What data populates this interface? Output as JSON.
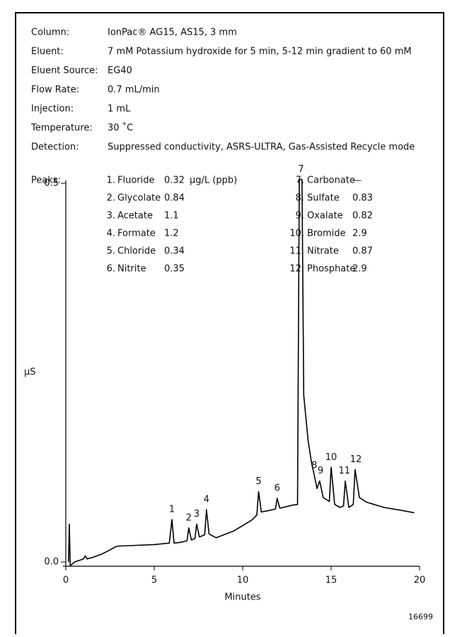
{
  "conditions": [
    {
      "label": "Column:",
      "value": "IonPac® AG15, AS15, 3 mm"
    },
    {
      "label": "Eluent:",
      "value": "7 mM Potassium hydroxide for 5 min, 5-12 min gradient to 60 mM"
    },
    {
      "label": "Eluent Source:",
      "value": "EG40"
    },
    {
      "label": "Flow Rate:",
      "value": "0.7 mL/min"
    },
    {
      "label": "Injection:",
      "value": "1 mL"
    },
    {
      "label": "Temperature:",
      "value": "30 ˚C"
    },
    {
      "label": "Detection:",
      "value": "Suppressed conductivity, ASRS-ULTRA, Gas-Assisted Recycle mode"
    }
  ],
  "peaks": {
    "label": "Peaks:",
    "units": "µg/L (ppb)",
    "items": [
      {
        "num": "1.",
        "name": "Fluoride",
        "conc": "0.32"
      },
      {
        "num": "2.",
        "name": "Glycolate",
        "conc": "0.84"
      },
      {
        "num": "3.",
        "name": "Acetate",
        "conc": "1.1"
      },
      {
        "num": "4.",
        "name": "Formate",
        "conc": "1.2"
      },
      {
        "num": "5.",
        "name": "Chloride",
        "conc": "0.34"
      },
      {
        "num": "6.",
        "name": "Nitrite",
        "conc": "0.35"
      },
      {
        "num": "7.",
        "name": "Carbonate",
        "conc": "—"
      },
      {
        "num": "8.",
        "name": "Sulfate",
        "conc": "0.83"
      },
      {
        "num": "9.",
        "name": "Oxalate",
        "conc": "0.82"
      },
      {
        "num": "10.",
        "name": "Bromide",
        "conc": "2.9"
      },
      {
        "num": "11.",
        "name": "Nitrate",
        "conc": "0.87"
      },
      {
        "num": "12.",
        "name": "Phosphate",
        "conc": "2.9"
      }
    ]
  },
  "chart_data": {
    "type": "line",
    "x_label": "Minutes",
    "y_label": "µS",
    "color": "#000000",
    "xlim": [
      0,
      20
    ],
    "xticks": [
      0,
      5,
      10,
      15,
      20
    ],
    "ylim": [
      0,
      0.5
    ],
    "yticks": [
      {
        "value": 0,
        "label": "0.0"
      },
      0.5
    ],
    "x": [
      0.15,
      0.2,
      0.25,
      0.35,
      0.5,
      1.0,
      1.1,
      1.2,
      1.5,
      2.0,
      2.5,
      2.8,
      3.0,
      4.0,
      5.0,
      5.85,
      6.0,
      6.12,
      6.5,
      6.85,
      6.95,
      7.1,
      7.3,
      7.4,
      7.55,
      7.85,
      7.95,
      8.1,
      8.5,
      9.5,
      10.5,
      10.8,
      10.9,
      11.05,
      11.5,
      11.85,
      11.95,
      12.1,
      12.8,
      13.1,
      13.2,
      13.35,
      13.45,
      13.7,
      13.9,
      14.05,
      14.2,
      14.35,
      14.55,
      14.9,
      15.0,
      15.2,
      15.5,
      15.7,
      15.8,
      16.0,
      16.25,
      16.35,
      16.6,
      17.0,
      18.0,
      19.0,
      19.7
    ],
    "values": [
      0,
      0.05,
      -0.005,
      -0.003,
      0.0,
      0.004,
      0.008,
      0.004,
      0.006,
      0.01,
      0.016,
      0.02,
      0.021,
      0.022,
      0.023,
      0.025,
      0.056,
      0.025,
      0.026,
      0.028,
      0.045,
      0.029,
      0.031,
      0.05,
      0.033,
      0.036,
      0.069,
      0.037,
      0.032,
      0.041,
      0.055,
      0.062,
      0.093,
      0.066,
      0.068,
      0.07,
      0.084,
      0.071,
      0.075,
      0.076,
      0.505,
      0.505,
      0.22,
      0.16,
      0.13,
      0.114,
      0.097,
      0.107,
      0.085,
      0.08,
      0.125,
      0.076,
      0.072,
      0.074,
      0.107,
      0.072,
      0.076,
      0.122,
      0.085,
      0.079,
      0.072,
      0.068,
      0.065
    ],
    "annotations": [
      {
        "text": "1",
        "x": 6.0,
        "y": 0.056
      },
      {
        "text": "2",
        "x": 6.95,
        "y": 0.045
      },
      {
        "text": "3",
        "x": 7.4,
        "y": 0.05
      },
      {
        "text": "4",
        "x": 7.95,
        "y": 0.069
      },
      {
        "text": "5",
        "x": 10.9,
        "y": 0.093
      },
      {
        "text": "6",
        "x": 11.95,
        "y": 0.084
      },
      {
        "text": "7",
        "x": 13.3,
        "y": 0.505
      },
      {
        "text": "8",
        "x": 14.05,
        "y": 0.114
      },
      {
        "text": "9",
        "x": 14.4,
        "y": 0.107
      },
      {
        "text": "10",
        "x": 15.0,
        "y": 0.125
      },
      {
        "text": "11",
        "x": 15.75,
        "y": 0.107
      },
      {
        "text": "12",
        "x": 16.4,
        "y": 0.122
      }
    ]
  },
  "figure_id": "16699"
}
